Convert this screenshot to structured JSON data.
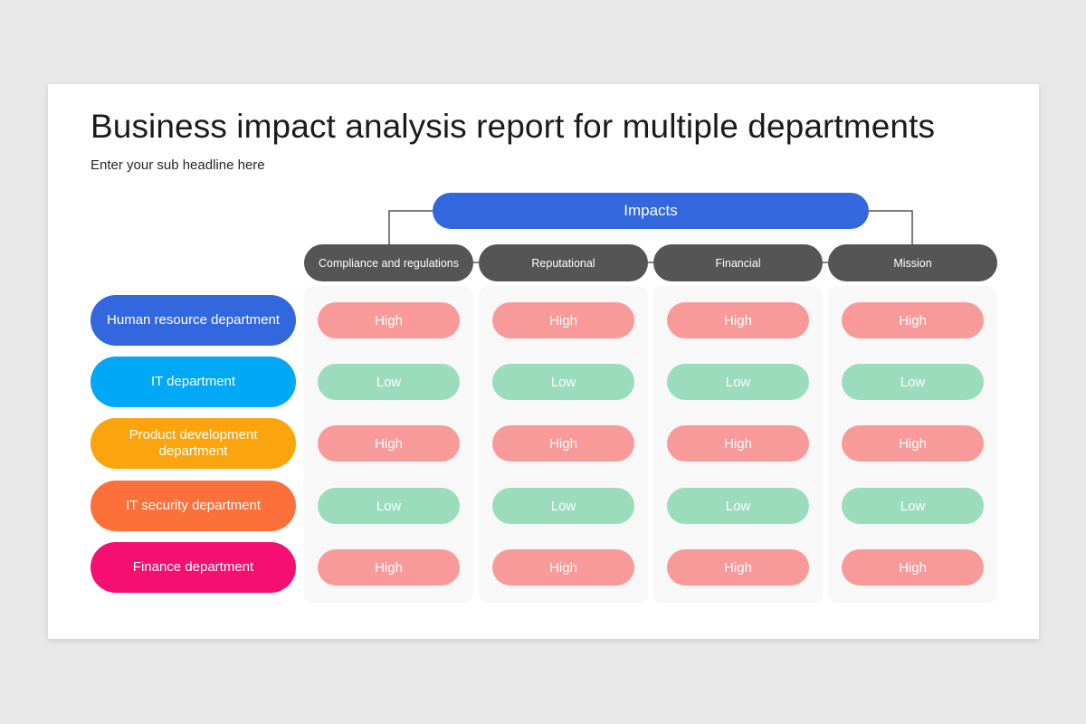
{
  "title": "Business impact analysis report for multiple departments",
  "subtitle": "Enter your sub headline here",
  "impacts_label": "Impacts",
  "colors": {
    "impacts": "#3367de",
    "column_header": "#555555",
    "high": "#f99a9a",
    "low": "#9adcbb"
  },
  "columns": [
    "Compliance and regulations",
    "Reputational",
    "Financial",
    "Mission"
  ],
  "departments": [
    {
      "name": "Human resource department",
      "color": "#3367de",
      "ratings": [
        "High",
        "High",
        "High",
        "High"
      ]
    },
    {
      "name": "IT department",
      "color": "#00a8f5",
      "ratings": [
        "Low",
        "Low",
        "Low",
        "Low"
      ]
    },
    {
      "name": "Product development department",
      "color": "#fca40e",
      "ratings": [
        "High",
        "High",
        "High",
        "High"
      ]
    },
    {
      "name": "IT security department",
      "color": "#fd7039",
      "ratings": [
        "Low",
        "Low",
        "Low",
        "Low"
      ]
    },
    {
      "name": "Finance department",
      "color": "#f50f73",
      "ratings": [
        "High",
        "High",
        "High",
        "High"
      ]
    }
  ]
}
